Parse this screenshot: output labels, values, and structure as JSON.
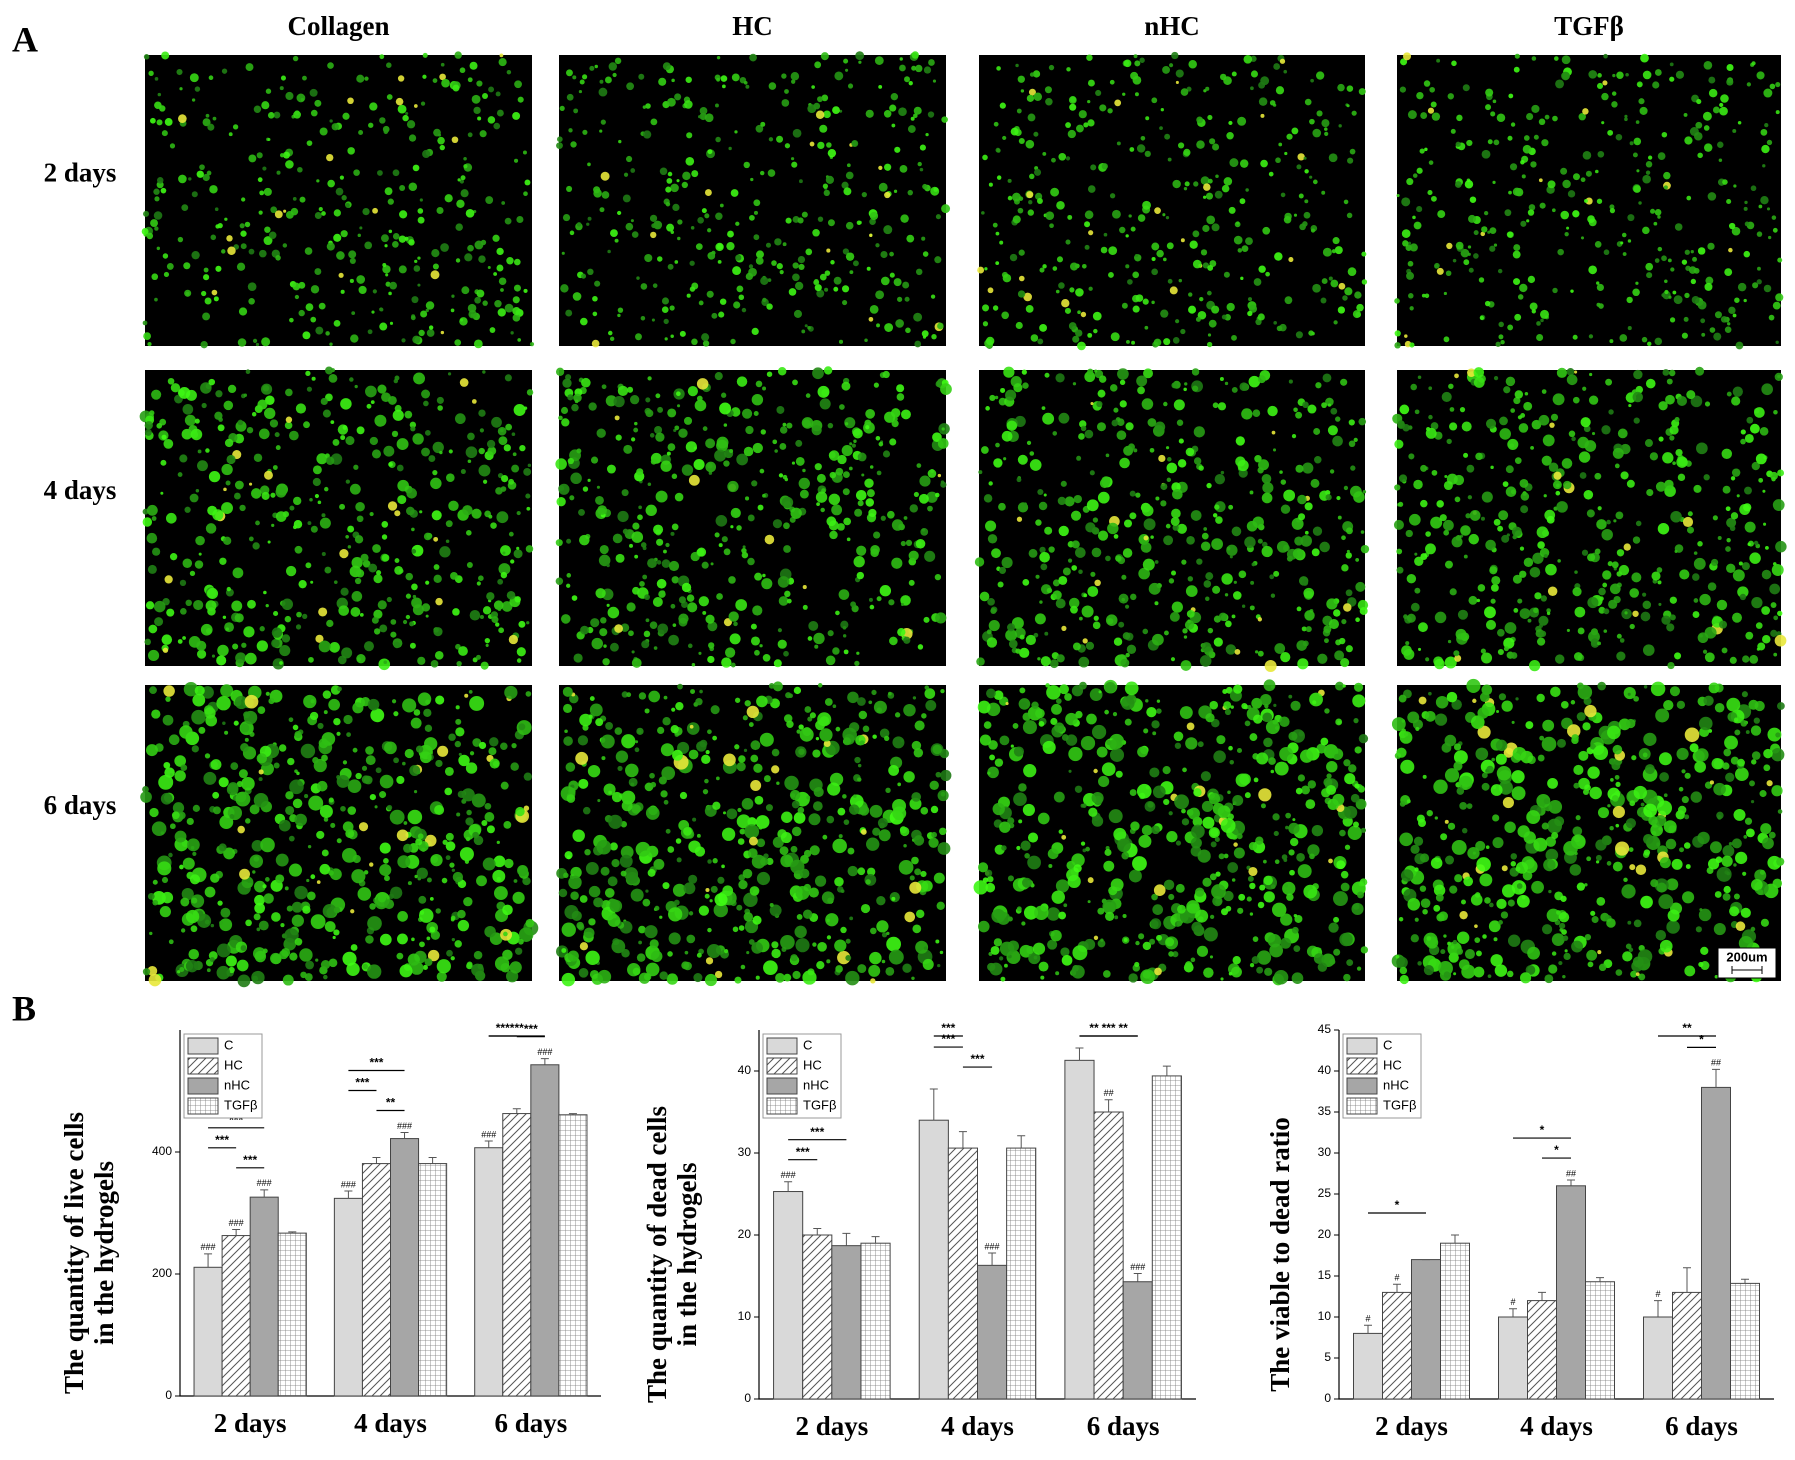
{
  "panel_a": {
    "label": "A",
    "columns": [
      "Collagen",
      "HC",
      "nHC",
      "TGFβ"
    ],
    "rows": [
      "2 days",
      "4 days",
      "6 days"
    ],
    "scale_bar": "200um"
  },
  "panel_b": {
    "label": "B"
  },
  "chart_data": [
    {
      "type": "bar",
      "y_label": [
        "The quantity of live cells",
        "in the hydrogels"
      ],
      "categories": [
        "2 days",
        "4 days",
        "6 days"
      ],
      "ylim": [
        0,
        600
      ],
      "yticks": [
        0,
        200,
        400
      ],
      "legend": "upper left",
      "series": [
        {
          "name": "C",
          "color": "#d9d9d9",
          "pattern": "solid",
          "values": [
            211,
            324,
            407
          ],
          "errors": [
            22,
            12,
            11
          ],
          "markers": [
            "###",
            "###",
            "###"
          ]
        },
        {
          "name": "HC",
          "color": "#ffffff",
          "pattern": "diagonal",
          "values": [
            263,
            381,
            463
          ],
          "errors": [
            10,
            10,
            8
          ],
          "markers": [
            "###",
            null,
            null
          ]
        },
        {
          "name": "nHC",
          "color": "#a6a6a6",
          "pattern": "solid",
          "values": [
            326,
            422,
            543
          ],
          "errors": [
            12,
            10,
            10
          ],
          "markers": [
            "###",
            "###",
            "###"
          ]
        },
        {
          "name": "TGFβ",
          "color": "#ffffff",
          "pattern": "grid",
          "values": [
            267,
            381,
            461
          ],
          "errors": [
            2,
            10,
            2
          ],
          "markers": [
            null,
            null,
            null
          ]
        }
      ],
      "annotations": [
        {
          "category": 0,
          "series": [
            0,
            2
          ],
          "text": "***"
        },
        {
          "category": 0,
          "series": [
            0,
            1
          ],
          "text": "***"
        },
        {
          "category": 0,
          "series": [
            1,
            2
          ],
          "text": "***"
        },
        {
          "category": 1,
          "series": [
            0,
            2
          ],
          "text": "***"
        },
        {
          "category": 1,
          "series": [
            0,
            1
          ],
          "text": "***"
        },
        {
          "category": 1,
          "series": [
            1,
            2
          ],
          "text": "**"
        },
        {
          "category": 2,
          "series": [
            0,
            2
          ],
          "text": "***"
        },
        {
          "category": 2,
          "series": [
            0,
            1
          ],
          "text": "***"
        },
        {
          "category": 2,
          "series": [
            1,
            2
          ],
          "text": "***"
        }
      ]
    },
    {
      "type": "bar",
      "y_label": [
        "The quantity of dead cells",
        "in the hydrogels"
      ],
      "categories": [
        "2 days",
        "4 days",
        "6 days"
      ],
      "ylim": [
        0,
        45
      ],
      "yticks": [
        0,
        10,
        20,
        30,
        40
      ],
      "legend": "upper left",
      "series": [
        {
          "name": "C",
          "color": "#d9d9d9",
          "pattern": "solid",
          "values": [
            25.3,
            34,
            41.3
          ],
          "errors": [
            1.2,
            3.8,
            1.5
          ],
          "markers": [
            "###",
            null,
            null
          ]
        },
        {
          "name": "HC",
          "color": "#ffffff",
          "pattern": "diagonal",
          "values": [
            20,
            30.6,
            35
          ],
          "errors": [
            0.8,
            2,
            1.5
          ],
          "markers": [
            null,
            null,
            "##"
          ]
        },
        {
          "name": "nHC",
          "color": "#a6a6a6",
          "pattern": "solid",
          "values": [
            18.7,
            16.3,
            14.3
          ],
          "errors": [
            1.5,
            1.5,
            1
          ],
          "markers": [
            null,
            "###",
            "###"
          ]
        },
        {
          "name": "TGFβ",
          "color": "#ffffff",
          "pattern": "grid",
          "values": [
            19,
            30.6,
            39.4
          ],
          "errors": [
            0.8,
            1.5,
            1.2
          ],
          "markers": [
            null,
            null,
            null
          ]
        }
      ],
      "annotations": [
        {
          "category": 0,
          "series": [
            0,
            2
          ],
          "text": "***"
        },
        {
          "category": 0,
          "series": [
            0,
            1
          ],
          "text": "***"
        },
        {
          "category": 1,
          "series": [
            0,
            1
          ],
          "text": "***"
        },
        {
          "category": 1,
          "series": [
            0,
            1
          ],
          "text": "***"
        },
        {
          "category": 1,
          "series": [
            1,
            2
          ],
          "text": "***"
        },
        {
          "category": 2,
          "series": [
            0,
            2
          ],
          "text": "***"
        },
        {
          "category": 2,
          "series": [
            0,
            1
          ],
          "text": "**"
        },
        {
          "category": 2,
          "series": [
            1,
            2
          ],
          "text": "**"
        }
      ]
    },
    {
      "type": "bar",
      "y_label": [
        "The viable to dead ratio"
      ],
      "categories": [
        "2 days",
        "4 days",
        "6 days"
      ],
      "ylim": [
        0,
        45
      ],
      "yticks": [
        0,
        5,
        10,
        15,
        20,
        25,
        30,
        35,
        40,
        45
      ],
      "legend": "upper left",
      "series": [
        {
          "name": "C",
          "color": "#d9d9d9",
          "pattern": "solid",
          "values": [
            8,
            10,
            10
          ],
          "errors": [
            1,
            1,
            2
          ],
          "markers": [
            "#",
            "#",
            "#"
          ]
        },
        {
          "name": "HC",
          "color": "#ffffff",
          "pattern": "diagonal",
          "values": [
            13,
            12,
            13
          ],
          "errors": [
            1,
            1,
            3
          ],
          "markers": [
            "#",
            null,
            null
          ]
        },
        {
          "name": "nHC",
          "color": "#a6a6a6",
          "pattern": "solid",
          "values": [
            17,
            26,
            38
          ],
          "errors": [
            0,
            0.7,
            2.2
          ],
          "markers": [
            null,
            "##",
            "##"
          ]
        },
        {
          "name": "TGFβ",
          "color": "#ffffff",
          "pattern": "grid",
          "values": [
            19,
            14.3,
            14.1
          ],
          "errors": [
            1,
            0.5,
            0.5
          ],
          "markers": [
            null,
            null,
            null
          ]
        }
      ],
      "annotations": [
        {
          "category": 0,
          "series": [
            0,
            2
          ],
          "text": "*"
        },
        {
          "category": 1,
          "series": [
            0,
            2
          ],
          "text": "*"
        },
        {
          "category": 1,
          "series": [
            1,
            2
          ],
          "text": "*"
        },
        {
          "category": 2,
          "series": [
            0,
            2
          ],
          "text": "**"
        },
        {
          "category": 2,
          "series": [
            1,
            2
          ],
          "text": "*"
        }
      ]
    }
  ]
}
